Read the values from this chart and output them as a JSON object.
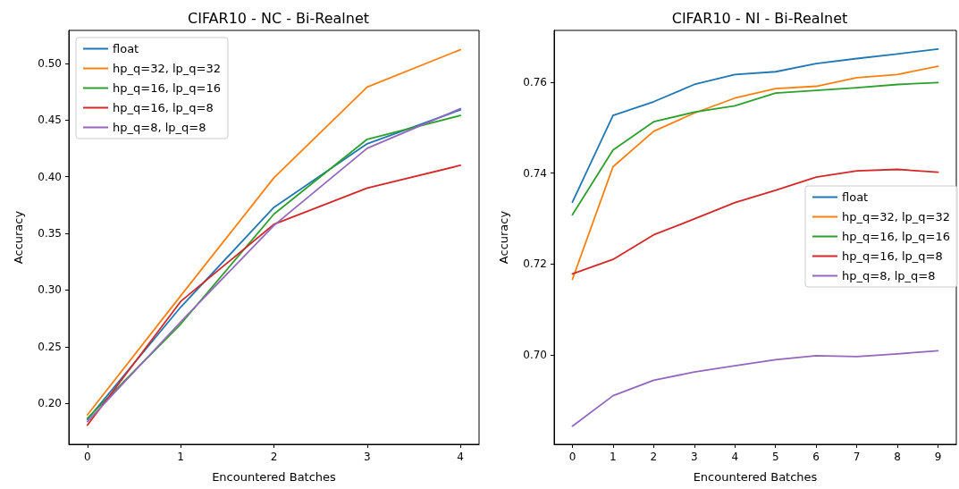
{
  "chart_data": [
    {
      "type": "line",
      "title": "CIFAR10 - NC - Bi-Realnet",
      "xlabel": "Encountered Batches",
      "ylabel": "Accuracy",
      "x": [
        0,
        1,
        2,
        3,
        4
      ],
      "xlim": [
        -0.2,
        4.2
      ],
      "xticks": [
        0,
        1,
        2,
        3,
        4
      ],
      "ylim": [
        0.164,
        0.529
      ],
      "yticks": [
        {
          "value": 0.2,
          "label": "0.20"
        },
        {
          "value": 0.25,
          "label": "0.25"
        },
        {
          "value": 0.3,
          "label": "0.30"
        },
        {
          "value": 0.35,
          "label": "0.35"
        },
        {
          "value": 0.4,
          "label": "0.40"
        },
        {
          "value": 0.45,
          "label": "0.45"
        },
        {
          "value": 0.5,
          "label": "0.50"
        }
      ],
      "grid": false,
      "legend": "top left",
      "marker": "none",
      "line_style": "solid",
      "series": [
        {
          "name": "float",
          "color": "#1f77b4",
          "values": [
            0.186,
            0.285,
            0.373,
            0.429,
            0.459
          ]
        },
        {
          "name": "hp_q=32, lp_q=32",
          "color": "#ff7f0e",
          "values": [
            0.19,
            0.295,
            0.399,
            0.479,
            0.512
          ]
        },
        {
          "name": "hp_q=16, lp_q=16",
          "color": "#2ca02c",
          "values": [
            0.187,
            0.27,
            0.367,
            0.433,
            0.454
          ]
        },
        {
          "name": "hp_q=16, lp_q=8",
          "color": "#d62728",
          "values": [
            0.181,
            0.29,
            0.358,
            0.39,
            0.41
          ]
        },
        {
          "name": "hp_q=8, lp_q=8",
          "color": "#9467bd",
          "values": [
            0.184,
            0.272,
            0.357,
            0.425,
            0.46
          ]
        }
      ]
    },
    {
      "type": "line",
      "title": "CIFAR10 - NI - Bi-Realnet",
      "xlabel": "Encountered Batches",
      "ylabel": "Accuracy",
      "x": [
        0,
        1,
        2,
        3,
        4,
        5,
        6,
        7,
        8,
        9
      ],
      "xlim": [
        -0.45,
        9.45
      ],
      "xticks": [
        0,
        1,
        2,
        3,
        4,
        5,
        6,
        7,
        8,
        9
      ],
      "ylim": [
        0.6803,
        0.7714
      ],
      "yticks": [
        {
          "value": 0.7,
          "label": "0.70"
        },
        {
          "value": 0.72,
          "label": "0.72"
        },
        {
          "value": 0.74,
          "label": "0.74"
        },
        {
          "value": 0.76,
          "label": "0.76"
        }
      ],
      "grid": false,
      "legend": "right",
      "marker": "none",
      "line_style": "solid",
      "series": [
        {
          "name": "float",
          "color": "#1f77b4",
          "values": [
            0.7336,
            0.7527,
            0.7557,
            0.7595,
            0.7617,
            0.7623,
            0.7641,
            0.7652,
            0.7662,
            0.7673
          ]
        },
        {
          "name": "hp_q=32, lp_q=32",
          "color": "#ff7f0e",
          "values": [
            0.7166,
            0.7414,
            0.7492,
            0.7532,
            0.7565,
            0.7586,
            0.7591,
            0.761,
            0.7617,
            0.7635
          ]
        },
        {
          "name": "hp_q=16, lp_q=16",
          "color": "#2ca02c",
          "values": [
            0.7308,
            0.7451,
            0.7513,
            0.7534,
            0.7548,
            0.7576,
            0.7582,
            0.7588,
            0.7595,
            0.7599
          ]
        },
        {
          "name": "hp_q=16, lp_q=8",
          "color": "#d62728",
          "values": [
            0.7178,
            0.721,
            0.7264,
            0.7299,
            0.7335,
            0.7362,
            0.7391,
            0.7405,
            0.7408,
            0.7402
          ]
        },
        {
          "name": "hp_q=8, lp_q=8",
          "color": "#9467bd",
          "values": [
            0.6843,
            0.691,
            0.6944,
            0.6962,
            0.6976,
            0.6989,
            0.6998,
            0.6996,
            0.7002,
            0.7009
          ]
        }
      ]
    }
  ]
}
